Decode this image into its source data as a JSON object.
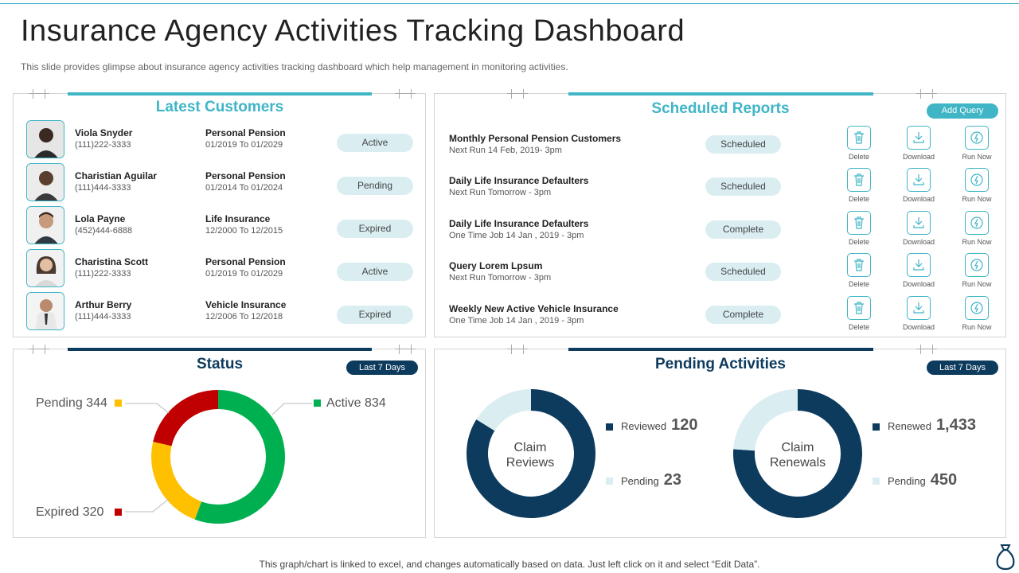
{
  "page": {
    "title": "Insurance Agency Activities Tracking Dashboard",
    "subtitle": "This slide provides glimpse about insurance agency activities tracking dashboard which help management in monitoring activities.",
    "footer": "This graph/chart is linked to excel, and changes automatically based on data. Just left click on it and select “Edit Data”."
  },
  "latest_customers": {
    "title": "Latest Customers",
    "rows": [
      {
        "name": "Viola Snyder",
        "phone": "(111)222-3333",
        "plan": "Personal Pension",
        "dates": "01/2019 To 01/2029",
        "status": "Active"
      },
      {
        "name": "Charistian Aguilar",
        "phone": "(111)444-3333",
        "plan": "Personal Pension",
        "dates": "01/2014 To 01/2024",
        "status": "Pending"
      },
      {
        "name": "Lola Payne",
        "phone": "(452)444-6888",
        "plan": "Life Insurance",
        "dates": "12/2000 To 12/2015",
        "status": "Expired"
      },
      {
        "name": "Charistina Scott",
        "phone": "(111)222-3333",
        "plan": "Personal Pension",
        "dates": "01/2019 To 01/2029",
        "status": "Active"
      },
      {
        "name": "Arthur Berry",
        "phone": "(111)444-3333",
        "plan": "Vehicle Insurance",
        "dates": "12/2006 To 12/2018",
        "status": "Expired"
      }
    ]
  },
  "scheduled_reports": {
    "title": "Scheduled Reports",
    "add_query_label": "Add Query",
    "action_labels": {
      "delete": "Delete",
      "download": "Download",
      "run_now": "Run Now"
    },
    "rows": [
      {
        "name": "Monthly Personal Pension Customers",
        "schedule": "Next Run 14 Feb, 2019- 3pm",
        "status": "Scheduled"
      },
      {
        "name": "Daily Life Insurance Defaulters",
        "schedule": "Next Run Tomorrow - 3pm",
        "status": "Scheduled"
      },
      {
        "name": "Daily Life Insurance Defaulters",
        "schedule": "One Time Job 14 Jan , 2019 - 3pm",
        "status": "Complete"
      },
      {
        "name": "Query Lorem Lpsum",
        "schedule": "Next Run Tomorrow - 3pm",
        "status": "Scheduled"
      },
      {
        "name": "Weekly New Active Vehicle Insurance",
        "schedule": "One Time Job 14 Jan , 2019 - 3pm",
        "status": "Complete"
      }
    ]
  },
  "status": {
    "title": "Status",
    "period_label": "Last 7 Days",
    "legend": {
      "active": "Active 834",
      "pending": "Pending 344",
      "expired": "Expired 320"
    }
  },
  "pending_activities": {
    "title": "Pending Activities",
    "period_label": "Last 7 Days",
    "claim_reviews": {
      "center": "Claim Reviews",
      "reviewed_label": "Reviewed",
      "reviewed_value": "120",
      "pending_label": "Pending",
      "pending_value": "23"
    },
    "claim_renewals": {
      "center": "Claim Renewals",
      "renewed_label": "Renewed",
      "renewed_value": "1,433",
      "pending_label": "Pending",
      "pending_value": "450"
    }
  },
  "colors": {
    "teal": "#3fb5c6",
    "navy": "#0d3b5e",
    "light": "#daeef2",
    "active": "#00b050",
    "pending": "#ffc000",
    "expired": "#c00000"
  },
  "chart_data": [
    {
      "type": "pie",
      "title": "Status",
      "categories": [
        "Active",
        "Pending",
        "Expired"
      ],
      "values": [
        834,
        344,
        320
      ]
    },
    {
      "type": "pie",
      "title": "Claim Reviews",
      "categories": [
        "Reviewed",
        "Pending"
      ],
      "values": [
        120,
        23
      ]
    },
    {
      "type": "pie",
      "title": "Claim Renewals",
      "categories": [
        "Renewed",
        "Pending"
      ],
      "values": [
        1433,
        450
      ]
    }
  ]
}
